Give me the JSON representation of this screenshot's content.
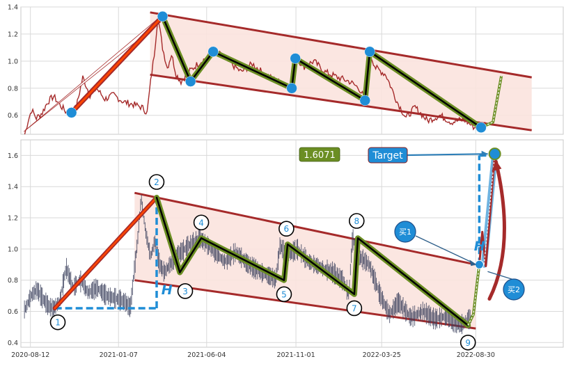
{
  "colors": {
    "channel_fill": "#fbe3de",
    "channel_line": "#a52a2a",
    "price_line": "#a52a2a",
    "bar_color": "#3a3f5c",
    "zigzag_outer": "#6b8e23",
    "zigzag_inner": "#000000",
    "impulse_outer": "#a52a2a",
    "impulse_inner": "#ff4500",
    "pivot_marker": "#1f8dd6",
    "target_box": "#1f8dd6",
    "price_box": "#6b8e23",
    "dashed_guide": "#1f8dd6",
    "grid": "#d9d9d9"
  },
  "chart_data": [
    {
      "id": "top-panel",
      "type": "line",
      "x_domain": [
        "2020-07-27",
        "2023-01-24"
      ],
      "ylim": [
        0.46,
        1.4
      ],
      "yticks": [
        0.6,
        0.8,
        1.0,
        1.2,
        1.4
      ],
      "grid": true,
      "price_series": [
        [
          "2020-08-02",
          0.45
        ],
        [
          "2020-08-08",
          0.56
        ],
        [
          "2020-08-14",
          0.64
        ],
        [
          "2020-08-22",
          0.58
        ],
        [
          "2020-09-01",
          0.62
        ],
        [
          "2020-09-10",
          0.7
        ],
        [
          "2020-09-20",
          0.74
        ],
        [
          "2020-09-30",
          0.68
        ],
        [
          "2020-10-10",
          0.63
        ],
        [
          "2020-10-18",
          0.62
        ],
        [
          "2020-10-28",
          0.66
        ],
        [
          "2020-11-08",
          0.88
        ],
        [
          "2020-11-20",
          0.75
        ],
        [
          "2020-12-01",
          0.8
        ],
        [
          "2020-12-15",
          0.72
        ],
        [
          "2020-12-30",
          0.75
        ],
        [
          "2021-01-15",
          0.7
        ],
        [
          "2021-02-01",
          0.68
        ],
        [
          "2021-02-15",
          0.66
        ],
        [
          "2021-02-24",
          0.62
        ],
        [
          "2021-03-02",
          0.85
        ],
        [
          "2021-03-08",
          1.05
        ],
        [
          "2021-03-14",
          1.33
        ],
        [
          "2021-03-22",
          1.1
        ],
        [
          "2021-03-30",
          0.95
        ],
        [
          "2021-04-06",
          1.05
        ],
        [
          "2021-04-14",
          0.9
        ],
        [
          "2021-04-22",
          0.85
        ],
        [
          "2021-05-05",
          0.92
        ],
        [
          "2021-05-20",
          0.98
        ],
        [
          "2021-06-05",
          1.03
        ],
        [
          "2021-06-20",
          1.07
        ],
        [
          "2021-07-10",
          1.0
        ],
        [
          "2021-08-01",
          0.92
        ],
        [
          "2021-08-20",
          0.98
        ],
        [
          "2021-09-10",
          0.9
        ],
        [
          "2021-10-01",
          0.85
        ],
        [
          "2021-10-20",
          0.82
        ],
        [
          "2021-10-26",
          0.8
        ],
        [
          "2021-11-02",
          1.02
        ],
        [
          "2021-11-15",
          0.96
        ],
        [
          "2021-12-01",
          1.0
        ],
        [
          "2021-12-20",
          0.92
        ],
        [
          "2022-01-10",
          0.88
        ],
        [
          "2022-01-30",
          0.85
        ],
        [
          "2022-02-15",
          0.8
        ],
        [
          "2022-02-26",
          0.71
        ],
        [
          "2022-03-01",
          0.9
        ],
        [
          "2022-03-04",
          1.07
        ],
        [
          "2022-03-15",
          0.95
        ],
        [
          "2022-04-01",
          0.9
        ],
        [
          "2022-04-20",
          0.7
        ],
        [
          "2022-05-05",
          0.58
        ],
        [
          "2022-05-20",
          0.66
        ],
        [
          "2022-06-10",
          0.56
        ],
        [
          "2022-07-01",
          0.6
        ],
        [
          "2022-07-20",
          0.55
        ],
        [
          "2022-08-10",
          0.57
        ],
        [
          "2022-08-28",
          0.51
        ],
        [
          "2022-09-05",
          0.52
        ],
        [
          "2022-09-15",
          0.55
        ]
      ],
      "channel": {
        "upper": [
          [
            "2021-03-01",
            1.36
          ],
          [
            "2022-12-02",
            0.88
          ]
        ],
        "lower": [
          [
            "2021-03-01",
            0.9
          ],
          [
            "2022-12-02",
            0.49
          ]
        ]
      },
      "impulse": [
        [
          "2020-10-20",
          0.62
        ],
        [
          "2021-03-22",
          1.33
        ]
      ],
      "projection": [
        [
          "2020-08-01",
          0.48
        ],
        [
          "2021-03-16",
          1.3
        ]
      ],
      "zigzag": [
        [
          "2021-03-22",
          1.33
        ],
        [
          "2021-05-08",
          0.85
        ],
        [
          "2021-06-15",
          1.07
        ],
        [
          "2021-10-25",
          0.8
        ],
        [
          "2021-10-31",
          1.02
        ],
        [
          "2022-02-25",
          0.71
        ],
        [
          "2022-03-05",
          1.07
        ],
        [
          "2022-09-08",
          0.51
        ],
        [
          "2022-09-28",
          0.55
        ],
        [
          "2022-10-12",
          0.89
        ]
      ],
      "pivot_markers": [
        [
          "2020-10-20",
          0.62
        ],
        [
          "2021-03-22",
          1.33
        ],
        [
          "2021-05-08",
          0.85
        ],
        [
          "2021-06-15",
          1.07
        ],
        [
          "2021-10-25",
          0.8
        ],
        [
          "2021-10-31",
          1.02
        ],
        [
          "2022-02-25",
          0.71
        ],
        [
          "2022-03-05",
          1.07
        ],
        [
          "2022-09-08",
          0.51
        ]
      ]
    },
    {
      "id": "bottom-panel",
      "type": "line",
      "x_domain": [
        "2020-07-27",
        "2023-01-24"
      ],
      "ylim": [
        0.37,
        1.7
      ],
      "yticks": [
        0.4,
        0.6,
        0.8,
        1.0,
        1.2,
        1.4,
        1.6
      ],
      "xticks": [
        "2020-08-12",
        "2021-01-07",
        "2021-06-04",
        "2021-11-01",
        "2022-03-25",
        "2022-08-30"
      ],
      "grid": true,
      "channel": {
        "upper": [
          [
            "2021-02-03",
            1.36
          ],
          [
            "2022-08-30",
            0.9
          ]
        ],
        "lower": [
          [
            "2021-02-03",
            0.8
          ],
          [
            "2022-08-30",
            0.49
          ]
        ]
      },
      "impulse": [
        [
          "2020-09-22",
          0.62
        ],
        [
          "2021-03-12",
          1.33
        ]
      ],
      "zigzag": [
        [
          "2021-03-12",
          1.33
        ],
        [
          "2021-04-20",
          0.85
        ],
        [
          "2021-05-26",
          1.07
        ],
        [
          "2021-10-12",
          0.8
        ],
        [
          "2021-10-18",
          1.03
        ],
        [
          "2022-02-07",
          0.71
        ],
        [
          "2022-02-13",
          1.07
        ],
        [
          "2022-08-17",
          0.51
        ],
        [
          "2022-08-26",
          0.58
        ],
        [
          "2022-09-05",
          0.9
        ]
      ],
      "projection_line": [
        [
          "2022-09-05",
          0.9
        ],
        [
          "2022-09-10",
          1.11
        ],
        [
          "2022-09-16",
          0.89
        ],
        [
          "2022-10-01",
          1.61
        ]
      ],
      "projection_band": [
        [
          "2022-09-13",
          0.9
        ],
        [
          "2022-10-01",
          1.61
        ]
      ],
      "target_point": [
        "2022-10-01",
        1.61
      ],
      "entry_point": [
        "2022-09-05",
        0.9
      ],
      "h_guides": {
        "impulse_horizontal": [
          [
            "2020-09-22",
            0.62
          ],
          [
            "2021-03-12",
            0.62
          ]
        ],
        "impulse_vertical": [
          [
            "2021-03-12",
            0.62
          ],
          [
            "2021-03-12",
            1.33
          ]
        ],
        "projection_vertical": [
          [
            "2022-09-05",
            0.9
          ],
          [
            "2022-09-05",
            1.6
          ]
        ],
        "projection_horizontal": [
          [
            "2022-09-05",
            1.6
          ],
          [
            "2022-10-01",
            1.6
          ]
        ]
      },
      "wave_labels": [
        {
          "label": "1",
          "x": "2020-09-27",
          "y": 0.53
        },
        {
          "label": "2",
          "x": "2021-03-12",
          "y": 1.43
        },
        {
          "label": "3",
          "x": "2021-04-29",
          "y": 0.73
        },
        {
          "label": "4",
          "x": "2021-05-26",
          "y": 1.17
        },
        {
          "label": "5",
          "x": "2021-10-12",
          "y": 0.71
        },
        {
          "label": "6",
          "x": "2021-10-16",
          "y": 1.13
        },
        {
          "label": "7",
          "x": "2022-02-07",
          "y": 0.62
        },
        {
          "label": "8",
          "x": "2022-02-11",
          "y": 1.18
        },
        {
          "label": "9",
          "x": "2022-08-17",
          "y": 0.4
        }
      ],
      "h_labels": [
        "H",
        "H"
      ],
      "price_label": "1.6071",
      "target_label": "Target",
      "buy_labels": [
        "买1",
        "买2"
      ]
    }
  ]
}
